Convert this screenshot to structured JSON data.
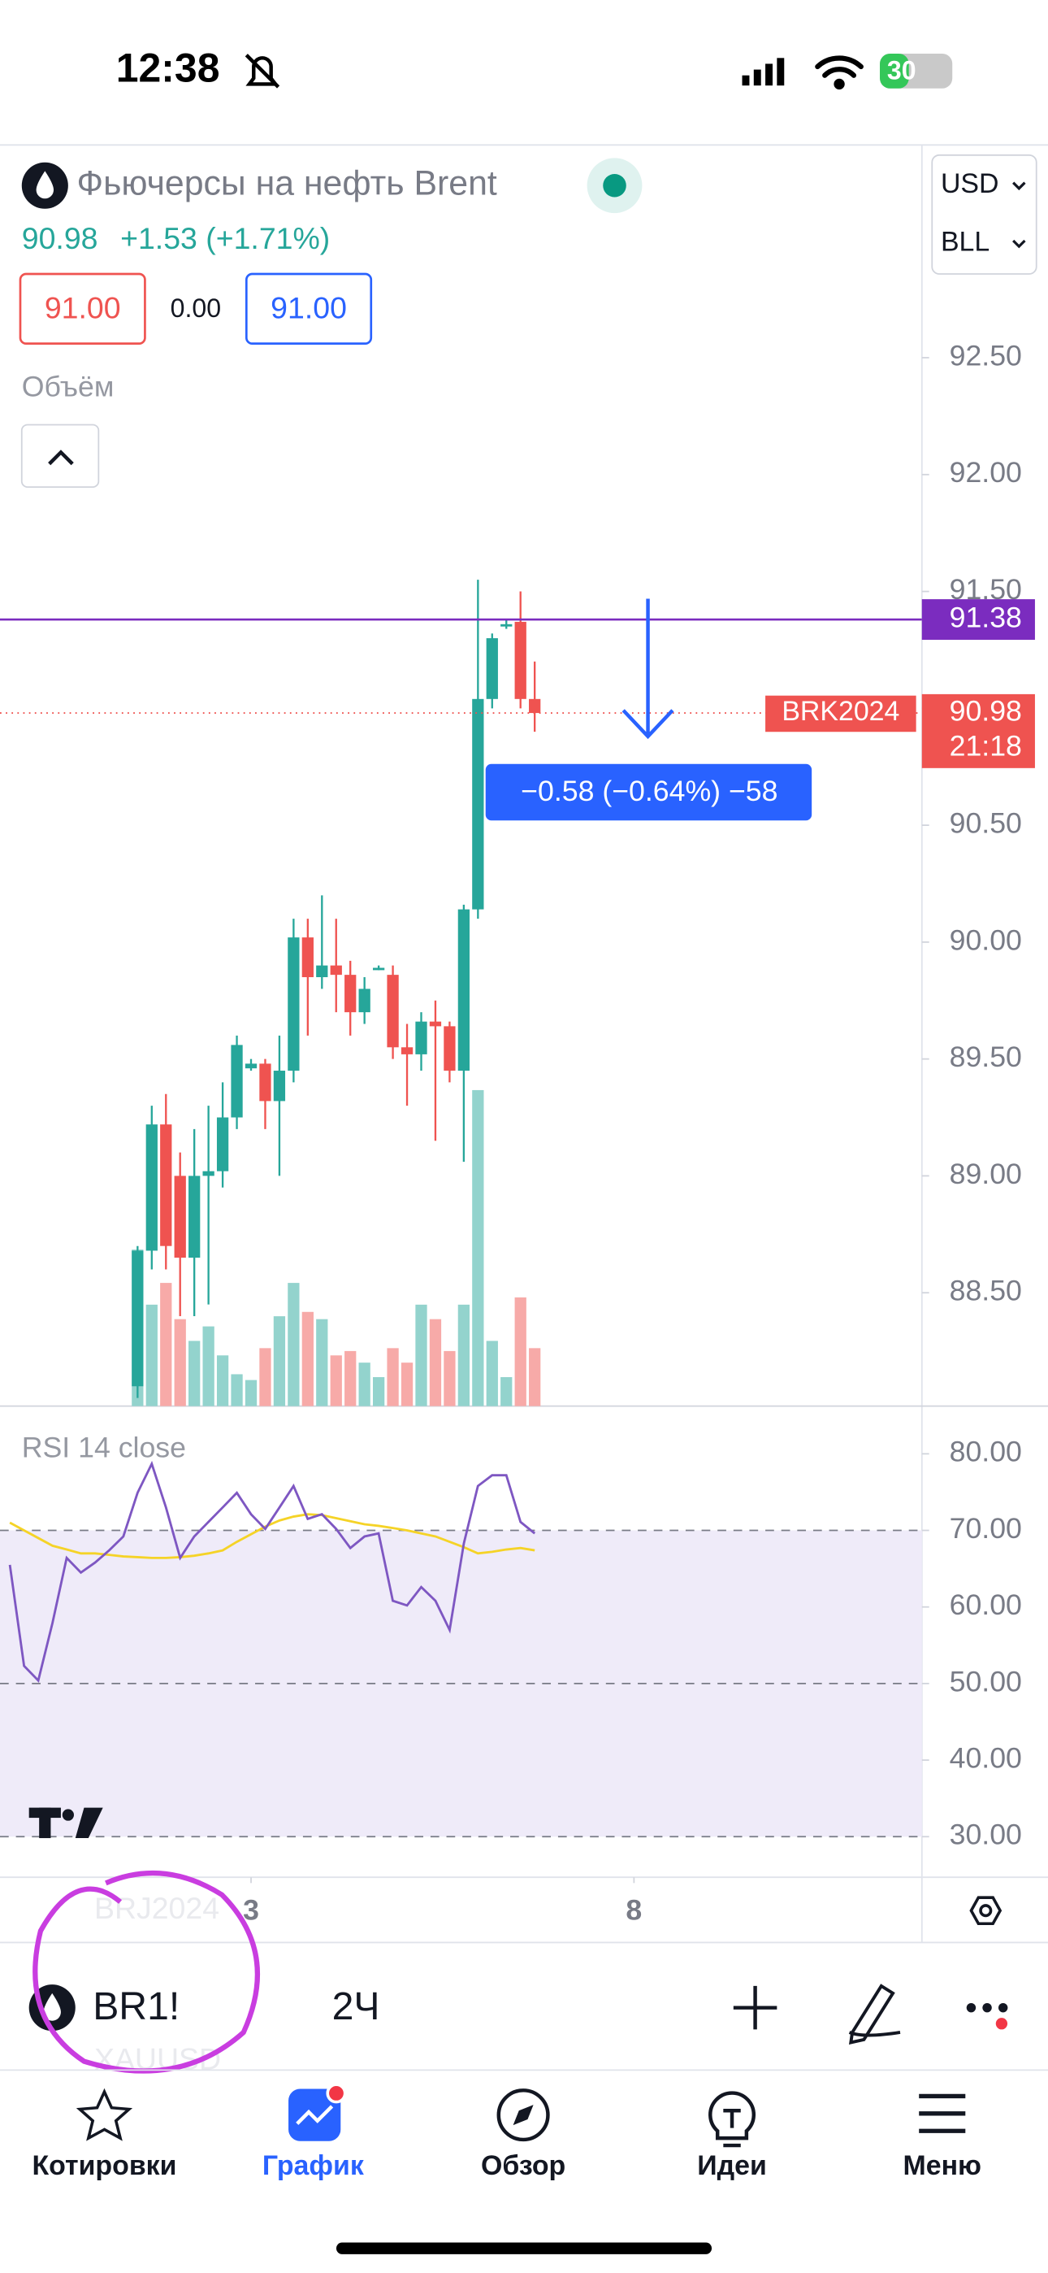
{
  "status_bar": {
    "time": "12:38",
    "battery": "30"
  },
  "header": {
    "title": "Фьючерсы на нефть Brent",
    "price": "90.98",
    "change": "+1.53 (+1.71%)",
    "sell": "91.00",
    "spread": "0.00",
    "buy": "91.00",
    "volume_label": "Объём",
    "currency": "USD",
    "unit": "BLL"
  },
  "chart_data": [
    {
      "type": "candlestick",
      "x": [
        0,
        1,
        2,
        3,
        4,
        5,
        6,
        7,
        8,
        9,
        10,
        11,
        12,
        13,
        14,
        15,
        16,
        17,
        18,
        19,
        20,
        21,
        22,
        23,
        24,
        25,
        26,
        27,
        28
      ],
      "open": [
        88.1,
        88.68,
        89.22,
        89.0,
        88.65,
        89.0,
        89.02,
        89.25,
        89.46,
        89.48,
        89.32,
        89.45,
        90.02,
        89.85,
        89.9,
        89.86,
        89.7,
        89.88,
        89.86,
        89.55,
        89.52,
        89.66,
        89.64,
        89.45,
        90.14,
        91.04,
        91.35,
        91.37,
        91.04
      ],
      "high": [
        88.7,
        89.3,
        89.35,
        89.1,
        89.2,
        89.3,
        89.4,
        89.6,
        89.5,
        89.5,
        89.6,
        90.1,
        90.1,
        90.2,
        90.1,
        89.92,
        89.85,
        89.9,
        89.9,
        89.65,
        89.7,
        89.75,
        89.66,
        90.16,
        91.55,
        91.32,
        91.38,
        91.5,
        91.2
      ],
      "low": [
        88.05,
        88.6,
        88.6,
        88.4,
        88.4,
        88.45,
        88.95,
        89.2,
        89.45,
        89.2,
        89.0,
        89.4,
        89.6,
        89.8,
        89.7,
        89.6,
        89.65,
        89.88,
        89.5,
        89.3,
        89.45,
        89.15,
        89.4,
        89.06,
        90.1,
        91.0,
        91.34,
        91.0,
        90.9
      ],
      "close": [
        88.68,
        89.22,
        88.7,
        88.65,
        89.0,
        89.02,
        89.25,
        89.56,
        89.48,
        89.32,
        89.45,
        90.02,
        89.85,
        89.9,
        89.86,
        89.7,
        89.8,
        89.89,
        89.55,
        89.52,
        89.66,
        89.64,
        89.45,
        90.14,
        91.04,
        91.3,
        91.36,
        91.04,
        90.98
      ],
      "volume": [
        108,
        70,
        85,
        60,
        45,
        55,
        35,
        22,
        18,
        40,
        62,
        85,
        65,
        60,
        35,
        38,
        30,
        20,
        40,
        30,
        70,
        60,
        38,
        70,
        218,
        45,
        20,
        75,
        40
      ],
      "volume_ylim": [
        0,
        870
      ],
      "up_color": "#26a69a",
      "down_color": "#ef5350",
      "volume_up_color": "#93d3cd",
      "volume_down_color": "#f7aaa8",
      "xlim": [
        -9.7,
        55.3
      ],
      "xticks": [
        {
          "value": 8,
          "label": "3"
        },
        {
          "value": 35,
          "label": "8"
        }
      ],
      "ylim": [
        88.015,
        93.41
      ],
      "yticks": [
        {
          "value": 88.5,
          "label": "88.50"
        },
        {
          "value": 89,
          "label": "89.00"
        },
        {
          "value": 89.5,
          "label": "89.50"
        },
        {
          "value": 90,
          "label": "90.00"
        },
        {
          "value": 90.5,
          "label": "90.50"
        },
        {
          "value": 91,
          "label": "91.00"
        },
        {
          "value": 91.5,
          "label": "91.50"
        },
        {
          "value": 92,
          "label": "92.00"
        },
        {
          "value": 92.5,
          "label": "92.50"
        }
      ],
      "horizontal_line": {
        "value": 91.38,
        "color": "#7b2cbf"
      },
      "last_price": 90.98,
      "last_symbol": "BRK2024",
      "countdown": "21:18",
      "measure_label": "−0.58 (−0.64%) −58"
    },
    {
      "type": "line",
      "title": "RSI 14 close",
      "x": [
        -9,
        -8,
        -7,
        -6,
        -5,
        -4,
        -3,
        -2,
        -1,
        0,
        1,
        2,
        3,
        4,
        5,
        6,
        7,
        8,
        9,
        10,
        11,
        12,
        13,
        14,
        15,
        16,
        17,
        18,
        19,
        20,
        21,
        22,
        23,
        24,
        25,
        26,
        27,
        28
      ],
      "series": [
        {
          "color": "#7e57c2",
          "values": [
            65.5,
            52.3,
            50.4,
            57.9,
            66.4,
            64.5,
            65.8,
            67.4,
            69.2,
            74.9,
            78.7,
            73.0,
            66.4,
            69.2,
            71.1,
            73.0,
            74.9,
            72.1,
            70.2,
            73.0,
            75.8,
            71.5,
            72.1,
            70.2,
            67.7,
            69.2,
            69.6,
            60.8,
            60.2,
            62.6,
            60.8,
            57.0,
            68.3,
            75.8,
            77.2,
            77.2,
            71.1,
            69.6
          ]
        },
        {
          "color": "#f5d327",
          "values": [
            71,
            70,
            69,
            68,
            67.5,
            67,
            67,
            66.8,
            66.6,
            66.5,
            66.4,
            66.4,
            66.5,
            66.7,
            67,
            67.4,
            68.5,
            69.5,
            70.5,
            71.3,
            71.8,
            72.1,
            72,
            71.6,
            71.2,
            70.8,
            70.6,
            70.3,
            70,
            69.6,
            69.2,
            68.5,
            67.8,
            67,
            67.2,
            67.5,
            67.7,
            67.4
          ]
        }
      ],
      "xlim": [
        -9.7,
        55.3
      ],
      "ylim": [
        24.7,
        85.85
      ],
      "yticks": [
        {
          "value": 30,
          "label": "30.00"
        },
        {
          "value": 40,
          "label": "40.00"
        },
        {
          "value": 50,
          "label": "50.00"
        },
        {
          "value": 60,
          "label": "60.00"
        },
        {
          "value": 70,
          "label": "70.00"
        },
        {
          "value": 80,
          "label": "80.00"
        }
      ],
      "band": [
        30,
        70
      ],
      "levels": [
        70,
        50,
        30
      ]
    }
  ],
  "toolbar": {
    "symbol": "BR1!",
    "interval": "2Ч",
    "ghost_1": "BRJ2024",
    "ghost_2": "XAUUSD"
  },
  "nav": {
    "items": [
      "Котировки",
      "График",
      "Обзор",
      "Идеи",
      "Меню"
    ]
  }
}
